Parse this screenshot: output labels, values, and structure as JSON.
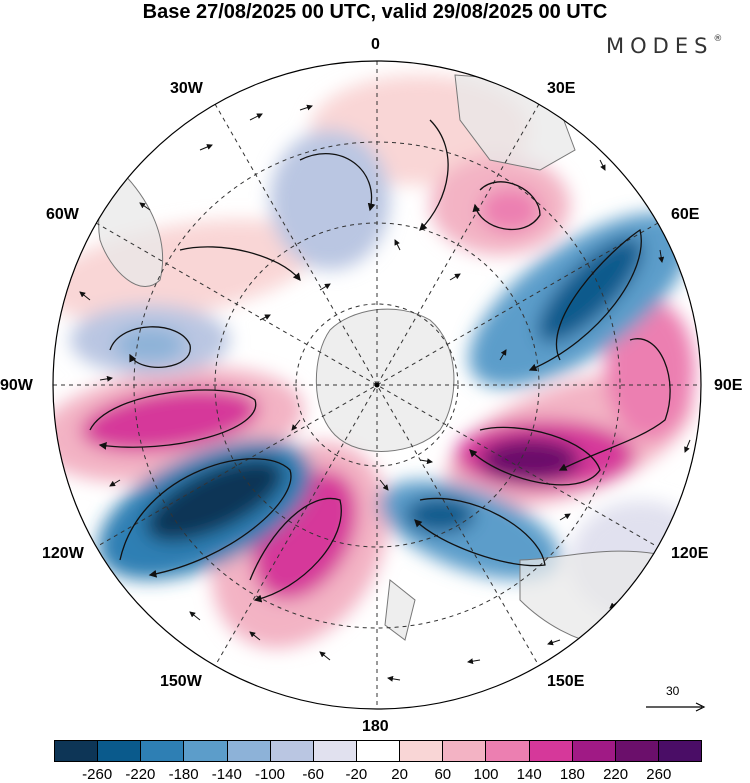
{
  "title": "Base 27/08/2025 00 UTC, valid 29/08/2025 00 UTC",
  "logo": "MODES",
  "logo_mark": "®",
  "longitude_labels": {
    "top": "0",
    "top_right": "30E",
    "upper_right": "60E",
    "right": "90E",
    "lower_right": "120E",
    "bottom_right": "150E",
    "bottom": "180",
    "bottom_left": "150W",
    "lower_left": "120W",
    "left": "90W",
    "upper_left": "60W",
    "top_left": "30W"
  },
  "vector_reference": "30",
  "colorbar": {
    "ticks": [
      "-260",
      "-220",
      "-180",
      "-140",
      "-100",
      "-60",
      "-20",
      "20",
      "60",
      "100",
      "140",
      "180",
      "220",
      "260"
    ],
    "colors": [
      "#0d3556",
      "#0a5a8c",
      "#2e7fb4",
      "#5c9dca",
      "#8db2d8",
      "#bac6e2",
      "#e1e1ef",
      "#ffffff",
      "#f9d6d6",
      "#f3b3c4",
      "#ec7fb1",
      "#d6389a",
      "#a01a85",
      "#6b0f6b",
      "#4a0d66"
    ]
  },
  "colors": {
    "land": "#e8e8e8",
    "coast": "#777777",
    "grid": "#333333",
    "arrow": "#111111"
  }
}
